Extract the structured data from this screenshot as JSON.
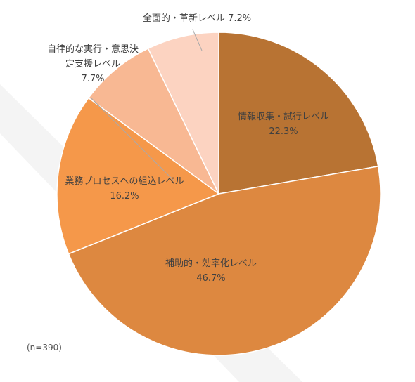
{
  "colors": {
    "slice1": "#b87333",
    "slice2": "#dd8840",
    "slice3": "#f5984a",
    "slice4": "#f8b893",
    "slice5": "#fcd3c1",
    "label": "#404040",
    "leader": "#aaaaaa",
    "band": "#f2f2f2"
  },
  "chart_data": {
    "type": "pie",
    "start": "12 o'clock",
    "direction": "clockwise",
    "slices": [
      {
        "label": "情報収集・試行レベル",
        "label_lines": [
          "情報収集・試行レベル"
        ],
        "value": 22.3,
        "value_text": "22.3%"
      },
      {
        "label": "補助的・効率化レベル",
        "label_lines": [
          "補助的・効率化レベル"
        ],
        "value": 46.7,
        "value_text": "46.7%"
      },
      {
        "label": "業務プロセスへの組込レベル",
        "label_lines": [
          "業務プロセスへの組込レベル"
        ],
        "value": 16.2,
        "value_text": "16.2%"
      },
      {
        "label": "自律的な実行・意思決定支援レベル",
        "label_lines": [
          "自律的な実行・意思決",
          "定支援レベル"
        ],
        "value": 7.7,
        "value_text": "7.7%"
      },
      {
        "label": "全面的・革新レベル",
        "label_lines": [
          "全面的・革新レベル"
        ],
        "value": 7.2,
        "value_text": "7.2%"
      }
    ],
    "note": "(n=390)"
  }
}
